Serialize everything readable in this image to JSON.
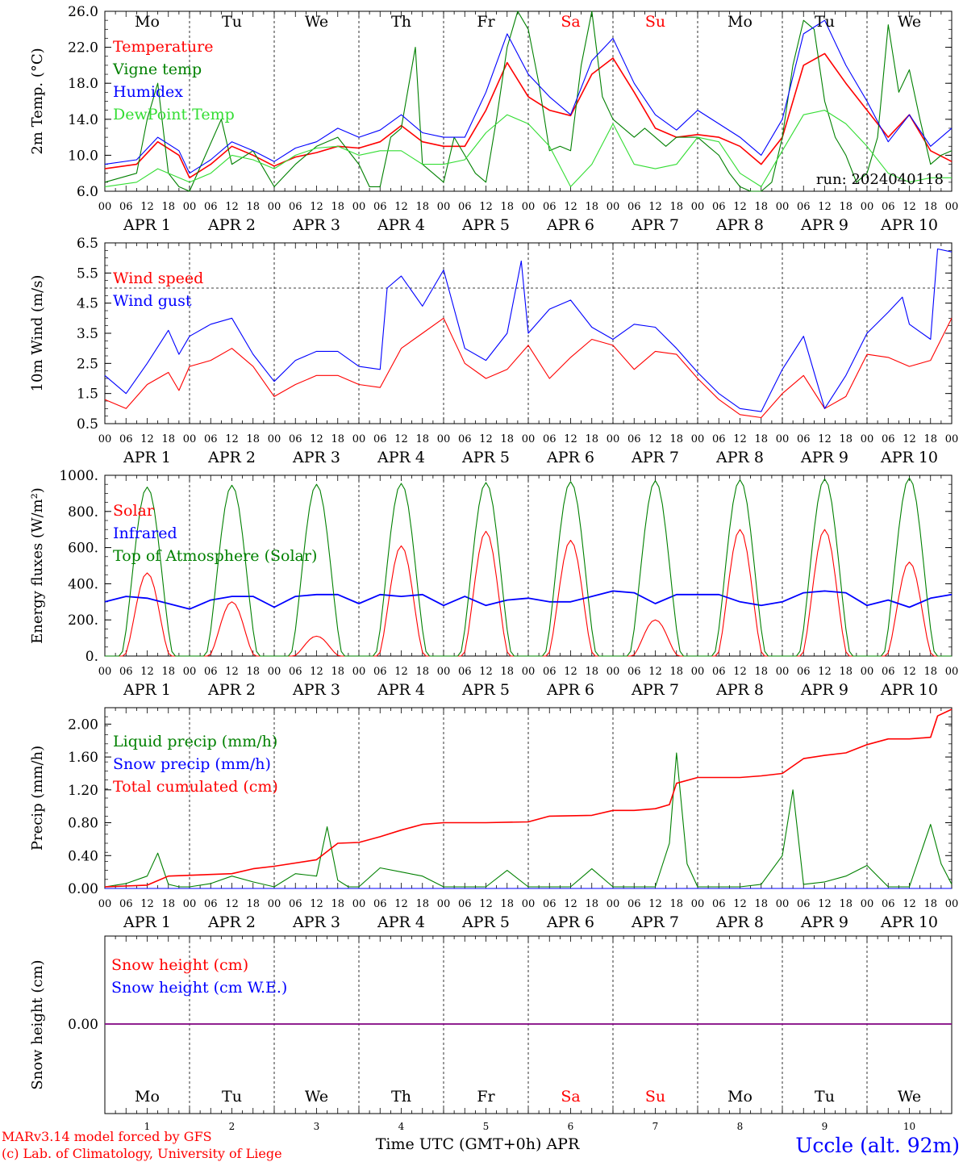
{
  "run_label": "run: 2024040118",
  "footer": {
    "model": "MARv3.14 model forced by GFS",
    "copyright": "(c) Lab. of Climatology, University of Liege",
    "axis_title": "Time UTC (GMT+0h) APR",
    "station": "Uccle (alt. 92m)"
  },
  "days": {
    "names": [
      "Mo",
      "Tu",
      "We",
      "Th",
      "Fr",
      "Sa",
      "Su",
      "Mo",
      "Tu",
      "We"
    ],
    "dates": [
      "APR 1",
      "APR 2",
      "APR 3",
      "APR 4",
      "APR 5",
      "APR 6",
      "APR 7",
      "APR 8",
      "APR 9",
      "APR 10"
    ],
    "numbers": [
      "1",
      "2",
      "3",
      "4",
      "5",
      "6",
      "7",
      "8",
      "9",
      "10"
    ],
    "weekend_color": "#ff0000",
    "hour_ticks": [
      "00",
      "06",
      "12",
      "18"
    ],
    "final_tick": "00"
  },
  "colors": {
    "red": "#ff0000",
    "green": "#008000",
    "blue": "#0000ff",
    "light_green": "#33dd33",
    "purple": "#800080"
  },
  "chart_data": [
    {
      "type": "line",
      "ylabel": "2m Temp. (°C)",
      "ylim": [
        6.0,
        26.0
      ],
      "yticks": [
        "26.0",
        "22.0",
        "18.0",
        "14.0",
        "10.0",
        "6.0"
      ],
      "x_unit": "hours since APR 1 00 UTC",
      "series": [
        {
          "name": "Temperature",
          "color": "#ff0000",
          "x": [
            0,
            9,
            15,
            21,
            24,
            30,
            36,
            42,
            48,
            54,
            60,
            66,
            72,
            78,
            84,
            90,
            96,
            102,
            108,
            114,
            120,
            126,
            132,
            138,
            144,
            150,
            156,
            162,
            168,
            174,
            180,
            186,
            192,
            198,
            204,
            210,
            216,
            222,
            228,
            234,
            240
          ],
          "values": [
            8.5,
            9.0,
            11.5,
            10.0,
            7.5,
            9.0,
            11.0,
            10.0,
            8.8,
            9.8,
            10.3,
            11.0,
            10.8,
            11.5,
            13.3,
            11.5,
            11.0,
            11.0,
            15.0,
            20.3,
            16.5,
            15.0,
            14.4,
            19.0,
            20.8,
            17.0,
            13.0,
            12.0,
            12.3,
            12.0,
            11.0,
            9.0,
            12.0,
            20.0,
            21.3,
            18.0,
            15.0,
            12.0,
            14.5,
            10.5,
            9.3
          ]
        },
        {
          "name": "Vigne temp",
          "color": "#008000",
          "x": [
            0,
            9,
            12,
            15,
            18,
            21,
            24,
            33,
            36,
            42,
            48,
            54,
            60,
            66,
            72,
            75,
            78,
            81,
            84,
            88,
            90,
            93,
            96,
            99,
            102,
            105,
            108,
            111,
            114,
            117,
            120,
            123,
            126,
            129,
            132,
            135,
            138,
            141,
            144,
            147,
            150,
            153,
            156,
            159,
            162,
            165,
            168,
            171,
            174,
            177,
            180,
            183,
            186,
            189,
            192,
            195,
            198,
            201,
            204,
            207,
            210,
            213,
            216,
            219,
            222,
            225,
            228,
            231,
            234,
            237,
            240
          ],
          "values": [
            7.0,
            8.0,
            14.0,
            18.0,
            8.0,
            6.5,
            6.0,
            14.0,
            9.0,
            10.5,
            6.5,
            9.0,
            11.0,
            12.0,
            9.0,
            6.5,
            6.5,
            12.0,
            13.0,
            22.0,
            9.0,
            8.0,
            7.0,
            12.0,
            10.0,
            8.0,
            7.0,
            14.0,
            22.0,
            26.0,
            24.0,
            18.0,
            10.5,
            11.0,
            10.5,
            20.0,
            26.0,
            16.5,
            14.0,
            13.0,
            12.0,
            13.0,
            12.0,
            11.0,
            12.0,
            12.0,
            12.0,
            11.0,
            10.0,
            8.0,
            6.5,
            6.0,
            6.0,
            7.0,
            12.0,
            20.0,
            25.0,
            24.0,
            16.0,
            12.0,
            10.0,
            7.0,
            8.0,
            12.0,
            24.5,
            17.0,
            19.5,
            14.0,
            9.0,
            10.0,
            10.5
          ]
        },
        {
          "name": "Humidex",
          "color": "#0000ff",
          "x": [
            0,
            9,
            15,
            21,
            24,
            30,
            36,
            42,
            48,
            54,
            60,
            66,
            72,
            78,
            84,
            90,
            96,
            102,
            108,
            114,
            120,
            126,
            132,
            138,
            144,
            150,
            156,
            162,
            168,
            174,
            180,
            186,
            192,
            198,
            204,
            210,
            216,
            222,
            228,
            234,
            240
          ],
          "values": [
            9.0,
            9.5,
            12.0,
            10.5,
            8.0,
            9.5,
            11.5,
            10.5,
            9.3,
            10.8,
            11.5,
            13.0,
            12.0,
            12.8,
            14.5,
            12.5,
            12.0,
            12.0,
            17.0,
            23.5,
            19.0,
            16.5,
            14.5,
            20.5,
            23.0,
            18.0,
            14.5,
            12.8,
            15.0,
            13.5,
            12.0,
            10.0,
            14.0,
            23.5,
            25.0,
            20.0,
            16.0,
            11.5,
            14.5,
            11.0,
            13.0
          ]
        },
        {
          "name": "DewPoint Temp",
          "color": "#33dd33",
          "x": [
            0,
            9,
            15,
            21,
            24,
            30,
            36,
            42,
            48,
            54,
            60,
            66,
            72,
            78,
            84,
            90,
            96,
            102,
            108,
            114,
            120,
            126,
            132,
            138,
            144,
            150,
            156,
            162,
            168,
            174,
            180,
            186,
            192,
            198,
            204,
            210,
            216,
            222,
            228,
            234,
            240
          ],
          "values": [
            6.5,
            7.0,
            8.5,
            7.5,
            7.0,
            8.0,
            10.0,
            9.5,
            8.5,
            10.0,
            10.8,
            11.0,
            10.0,
            10.5,
            10.5,
            9.0,
            9.0,
            9.5,
            12.5,
            14.5,
            13.5,
            11.0,
            6.5,
            9.0,
            13.5,
            9.0,
            8.5,
            9.0,
            12.0,
            11.5,
            8.0,
            6.5,
            10.5,
            14.5,
            15.0,
            13.5,
            11.0,
            8.0,
            7.0,
            7.5,
            7.5
          ]
        }
      ]
    },
    {
      "type": "line",
      "ylabel": "10m Wind (m/s)",
      "ylim": [
        0.5,
        6.5
      ],
      "yticks": [
        "6.5",
        "5.5",
        "4.5",
        "3.5",
        "2.5",
        "1.5",
        "0.5"
      ],
      "reference_line": 5.0,
      "series": [
        {
          "name": "Wind speed",
          "color": "#ff0000",
          "x": [
            0,
            6,
            12,
            18,
            21,
            24,
            30,
            36,
            42,
            48,
            54,
            60,
            66,
            72,
            78,
            84,
            90,
            96,
            102,
            108,
            114,
            120,
            126,
            132,
            138,
            144,
            150,
            156,
            162,
            168,
            174,
            180,
            186,
            192,
            198,
            204,
            210,
            216,
            222,
            228,
            234,
            240
          ],
          "values": [
            1.3,
            1.0,
            1.8,
            2.2,
            1.6,
            2.4,
            2.6,
            3.0,
            2.4,
            1.4,
            1.8,
            2.1,
            2.1,
            1.8,
            1.7,
            3.0,
            3.5,
            4.0,
            2.5,
            2.0,
            2.3,
            3.1,
            2.0,
            2.7,
            3.3,
            3.1,
            2.3,
            2.9,
            2.8,
            2.0,
            1.3,
            0.8,
            0.7,
            1.5,
            2.1,
            1.0,
            1.4,
            2.8,
            2.7,
            2.4,
            2.6,
            4.0
          ]
        },
        {
          "name": "Wind gust",
          "color": "#0000ff",
          "x": [
            0,
            6,
            12,
            18,
            21,
            24,
            30,
            36,
            42,
            48,
            54,
            60,
            66,
            72,
            78,
            80,
            84,
            90,
            96,
            102,
            108,
            114,
            118,
            120,
            126,
            132,
            138,
            144,
            150,
            156,
            162,
            168,
            174,
            180,
            186,
            192,
            198,
            204,
            210,
            216,
            222,
            226,
            228,
            234,
            236,
            240
          ],
          "values": [
            2.1,
            1.5,
            2.5,
            3.6,
            2.8,
            3.4,
            3.8,
            4.0,
            2.8,
            1.9,
            2.6,
            2.9,
            2.9,
            2.4,
            2.3,
            5.0,
            5.4,
            4.4,
            5.6,
            3.0,
            2.6,
            3.5,
            5.9,
            3.5,
            4.3,
            4.6,
            3.7,
            3.3,
            3.8,
            3.7,
            3.0,
            2.2,
            1.5,
            1.0,
            0.9,
            2.3,
            3.4,
            1.0,
            2.1,
            3.5,
            4.2,
            4.7,
            3.8,
            3.3,
            6.3,
            6.2
          ]
        }
      ]
    },
    {
      "type": "line",
      "ylabel": "Energy fluxes (W/m²)",
      "ylim": [
        0,
        1000
      ],
      "yticks": [
        "1000.",
        "800.",
        "600.",
        "400.",
        "200.",
        "0."
      ],
      "series": [
        {
          "name": "Solar",
          "color": "#ff0000",
          "peaks": [
            460,
            300,
            110,
            610,
            690,
            640,
            200,
            700,
            700,
            520
          ]
        },
        {
          "name": "Infrared",
          "color": "#0000ff",
          "x": [
            0,
            6,
            12,
            18,
            24,
            30,
            36,
            42,
            48,
            54,
            60,
            66,
            72,
            78,
            84,
            90,
            96,
            102,
            108,
            114,
            120,
            126,
            132,
            138,
            144,
            150,
            156,
            162,
            168,
            174,
            180,
            186,
            192,
            198,
            204,
            210,
            216,
            222,
            228,
            234,
            240
          ],
          "values": [
            300,
            330,
            320,
            290,
            260,
            310,
            330,
            330,
            270,
            330,
            340,
            340,
            290,
            340,
            330,
            340,
            280,
            330,
            280,
            310,
            320,
            300,
            300,
            330,
            360,
            350,
            290,
            340,
            340,
            340,
            300,
            280,
            300,
            350,
            360,
            350,
            280,
            310,
            270,
            320,
            340
          ]
        },
        {
          "name": "Top of Atmosphere (Solar)",
          "color": "#008000",
          "peaks": [
            935,
            945,
            950,
            955,
            960,
            965,
            970,
            975,
            980,
            985
          ]
        }
      ]
    },
    {
      "type": "line",
      "ylabel": "Precip (mm/h)",
      "ylim": [
        0,
        2.2
      ],
      "yticks": [
        "2.00",
        "1.60",
        "1.20",
        "0.80",
        "0.40",
        "0.00"
      ],
      "series": [
        {
          "name": "Liquid precip (mm/h)",
          "color": "#008000",
          "x": [
            0,
            6,
            12,
            15,
            18,
            21,
            24,
            30,
            36,
            42,
            48,
            54,
            60,
            63,
            66,
            69,
            72,
            78,
            84,
            90,
            96,
            102,
            108,
            114,
            120,
            126,
            132,
            138,
            144,
            150,
            156,
            160,
            162,
            165,
            168,
            174,
            180,
            186,
            192,
            195,
            198,
            204,
            210,
            216,
            222,
            228,
            234,
            237,
            240
          ],
          "values": [
            0.02,
            0.06,
            0.15,
            0.43,
            0.05,
            0.02,
            0.02,
            0.06,
            0.15,
            0.08,
            0.02,
            0.18,
            0.15,
            0.75,
            0.1,
            0.02,
            0.02,
            0.25,
            0.2,
            0.15,
            0.02,
            0.02,
            0.02,
            0.22,
            0.02,
            0.02,
            0.02,
            0.24,
            0.02,
            0.02,
            0.02,
            0.55,
            1.65,
            0.3,
            0.02,
            0.02,
            0.02,
            0.05,
            0.4,
            1.2,
            0.05,
            0.08,
            0.15,
            0.28,
            0.02,
            0.02,
            0.78,
            0.3,
            0.05
          ]
        },
        {
          "name": "Snow precip (mm/h)",
          "color": "#0000ff",
          "x": [
            0,
            240
          ],
          "values": [
            0,
            0
          ]
        },
        {
          "name": "Total cumulated (cm)",
          "color": "#ff0000",
          "x": [
            0,
            12,
            18,
            24,
            36,
            42,
            48,
            60,
            66,
            72,
            78,
            84,
            90,
            96,
            108,
            120,
            126,
            138,
            144,
            150,
            156,
            160,
            162,
            168,
            174,
            180,
            186,
            192,
            198,
            204,
            210,
            216,
            222,
            228,
            234,
            236,
            240
          ],
          "values": [
            0.02,
            0.04,
            0.15,
            0.16,
            0.18,
            0.24,
            0.27,
            0.35,
            0.55,
            0.56,
            0.63,
            0.71,
            0.78,
            0.8,
            0.8,
            0.81,
            0.88,
            0.89,
            0.95,
            0.95,
            0.97,
            1.02,
            1.28,
            1.35,
            1.35,
            1.35,
            1.37,
            1.4,
            1.58,
            1.62,
            1.65,
            1.75,
            1.82,
            1.82,
            1.84,
            2.1,
            2.18
          ]
        }
      ]
    },
    {
      "type": "line",
      "ylabel": "Snow height (cm)",
      "yticks": [
        "0.00"
      ],
      "series": [
        {
          "name": "Snow height (cm)",
          "color": "#ff0000",
          "x": [
            0,
            240
          ],
          "values": [
            0,
            0
          ]
        },
        {
          "name": "Snow height (cm W.E.)",
          "color": "#0000ff",
          "x": [
            0,
            240
          ],
          "values": [
            0,
            0
          ]
        }
      ]
    }
  ]
}
